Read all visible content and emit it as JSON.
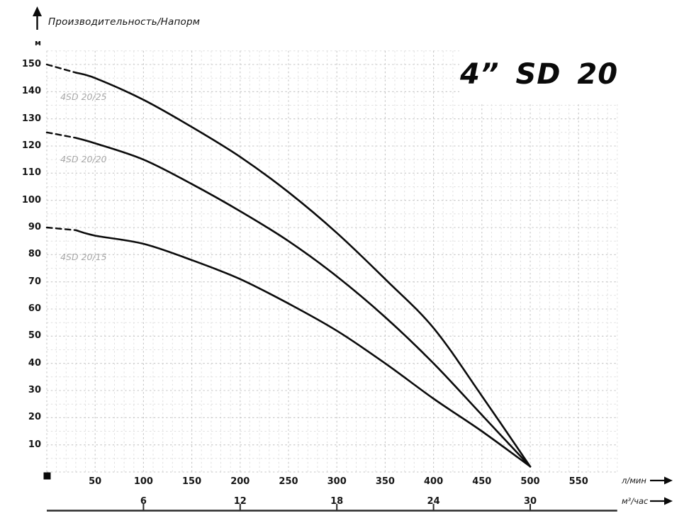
{
  "chart_data": {
    "type": "line",
    "title": "4” SD 20",
    "axis_title": "Производительность/Напорм",
    "y_axis": {
      "label": "м",
      "ticks": [
        150,
        140,
        130,
        120,
        110,
        100,
        90,
        80,
        70,
        60,
        50,
        40,
        30,
        20,
        10
      ],
      "range": [
        0,
        155
      ]
    },
    "x_axis": {
      "label": "л/мин",
      "ticks": [
        50,
        100,
        150,
        200,
        250,
        300,
        350,
        400,
        450,
        500,
        550
      ],
      "range": [
        0,
        590
      ]
    },
    "x_axis2": {
      "label": "м³/час",
      "ticks": [
        {
          "label": "6",
          "lmin": 100
        },
        {
          "label": "12",
          "lmin": 200
        },
        {
          "label": "18",
          "lmin": 300
        },
        {
          "label": "24",
          "lmin": 400
        },
        {
          "label": "30",
          "lmin": 500
        }
      ]
    },
    "grid": {
      "x_minor_step": 10,
      "x_major_step": 50,
      "y_minor_step": 5,
      "y_major_step": 10
    },
    "series": [
      {
        "name": "4SD 20/25",
        "dashed_lead_until": 30,
        "points": [
          [
            0,
            150
          ],
          [
            30,
            147
          ],
          [
            50,
            145
          ],
          [
            100,
            137
          ],
          [
            150,
            127
          ],
          [
            200,
            116
          ],
          [
            250,
            103
          ],
          [
            300,
            88
          ],
          [
            350,
            71
          ],
          [
            400,
            53
          ],
          [
            450,
            28
          ],
          [
            500,
            2
          ]
        ],
        "label_anchor": {
          "q": 14,
          "h": 138
        }
      },
      {
        "name": "4SD 20/20",
        "dashed_lead_until": 30,
        "points": [
          [
            0,
            125
          ],
          [
            30,
            123
          ],
          [
            50,
            121
          ],
          [
            100,
            115
          ],
          [
            150,
            106
          ],
          [
            200,
            96
          ],
          [
            250,
            85
          ],
          [
            300,
            72
          ],
          [
            350,
            57
          ],
          [
            400,
            40
          ],
          [
            450,
            21
          ],
          [
            500,
            2
          ]
        ],
        "label_anchor": {
          "q": 14,
          "h": 115
        }
      },
      {
        "name": "4SD 20/15",
        "dashed_lead_until": 30,
        "points": [
          [
            0,
            90
          ],
          [
            30,
            89
          ],
          [
            50,
            87
          ],
          [
            100,
            84
          ],
          [
            150,
            78
          ],
          [
            200,
            71
          ],
          [
            250,
            62
          ],
          [
            300,
            52
          ],
          [
            350,
            40
          ],
          [
            400,
            27
          ],
          [
            450,
            15
          ],
          [
            500,
            2
          ]
        ],
        "label_anchor": {
          "q": 14,
          "h": 79
        }
      }
    ],
    "colors": {
      "curve": "#0b0b0b",
      "grid_minor": "#e0e0e0",
      "grid_major": "#c6c6c6",
      "curve_label": "#a8a8a8",
      "axis_line": "#2b2b2b",
      "text": "#111111",
      "background": "#ffffff"
    }
  }
}
